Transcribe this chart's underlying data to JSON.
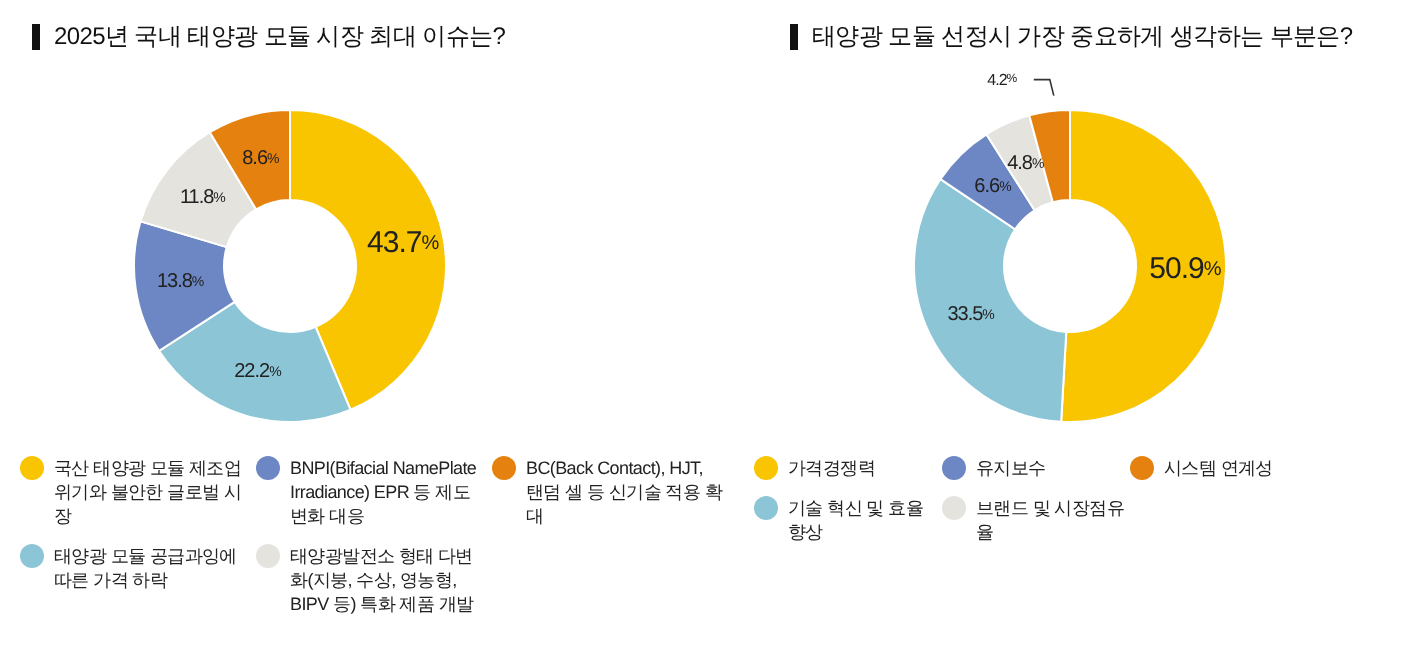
{
  "chart_data": [
    {
      "type": "donut",
      "title": "2025년 국내 태양광 모듈 시장 최대 이슈는?",
      "categories": [
        "국산 태양광 모듈 제조업 위기와 불안한 글로벌 시장",
        "태양광 모듈 공급과잉에 따른 가격 하락",
        "BNPI(Bifacial NamePlate Irradiance) EPR 등 제도 변화 대응",
        "태양광발전소 형태 다변화(지붕, 수상, 영농형, BIPV 등) 특화 제품 개발",
        "BC(Back Contact), HJT, 탠덤 셀 등 신기술 적용 확대"
      ],
      "values": [
        43.7,
        22.2,
        13.8,
        11.8,
        8.6
      ],
      "colors": [
        "#f9c400",
        "#8cc5d6",
        "#6c87c3",
        "#e4e3de",
        "#e5820f"
      ],
      "value_labels": [
        "43.7%",
        "22.2%",
        "13.8%",
        "11.8%",
        "8.6%"
      ],
      "legend": "bottom"
    },
    {
      "type": "donut",
      "title": "태양광 모듈 선정시 가장 중요하게 생각하는 부분은?",
      "categories": [
        "가격경쟁력",
        "기술 혁신 및 효율 향상",
        "유지보수",
        "브랜드 및 시장점유율",
        "시스템 연계성"
      ],
      "values": [
        50.9,
        33.5,
        6.6,
        4.8,
        4.2
      ],
      "colors": [
        "#f9c400",
        "#8cc5d6",
        "#6c87c3",
        "#e4e3de",
        "#e5820f"
      ],
      "value_labels": [
        "50.9%",
        "33.5%",
        "6.6%",
        "4.8%",
        "4.2%"
      ],
      "legend": "bottom"
    }
  ]
}
